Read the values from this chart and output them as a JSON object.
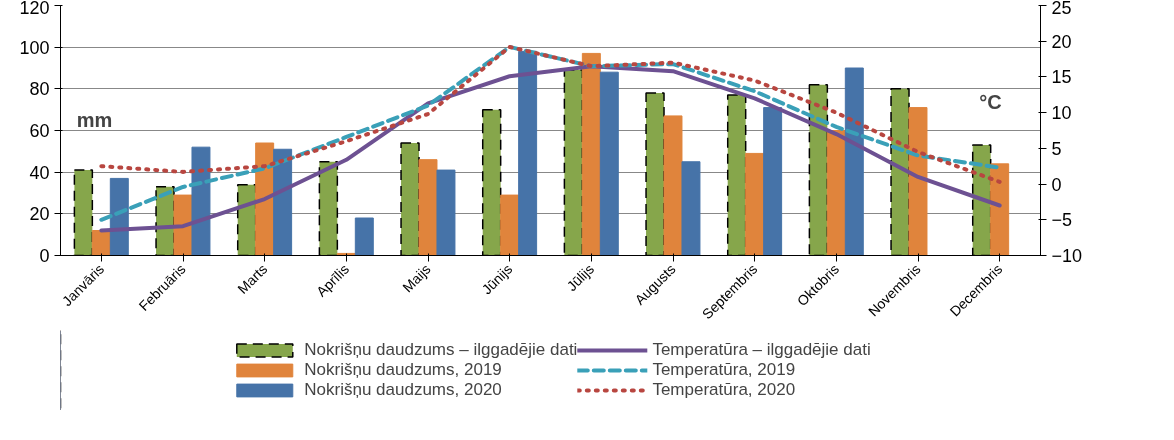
{
  "chart_data": {
    "type": "bar",
    "categories": [
      "Janvāris",
      "Februāris",
      "Marts",
      "Aprīlis",
      "Maijs",
      "Jūnijs",
      "Jūlijs",
      "Augusts",
      "Septembris",
      "Oktobris",
      "Novembris",
      "Decembris"
    ],
    "ylabel": "mm",
    "y2label": "°C",
    "ylim": [
      0,
      120
    ],
    "yticks": [
      0,
      20,
      40,
      60,
      80,
      100,
      120
    ],
    "y2lim": [
      -10,
      25
    ],
    "y2ticks": [
      -10,
      -5,
      0,
      5,
      10,
      15,
      20,
      25
    ],
    "grid": "y",
    "legend": "bottom",
    "series": [
      {
        "name": "Nokrišņu daudzums – ilggadējie dati",
        "color": "#86a64b",
        "line_style": "dashed",
        "values": [
          41,
          33,
          34,
          45,
          54,
          70,
          89,
          78,
          77,
          82,
          80,
          53
        ]
      },
      {
        "name": "Nokrišņu daudzums, 2019",
        "color": "#e0843c",
        "values": [
          12,
          29,
          54,
          1,
          46,
          29,
          97,
          67,
          49,
          60,
          71,
          44
        ]
      },
      {
        "name": "Nokrišņu daudzums, 2020",
        "color": "#4673a8",
        "values": [
          37,
          52,
          51,
          18,
          41,
          98,
          88,
          45,
          71,
          90,
          null,
          null
        ]
      },
      {
        "name": "Temperatūra – ilggadējie dati",
        "type": "line",
        "axis": "y2",
        "color": "#6d5192",
        "line_style": "solid",
        "values": [
          -6.5,
          -5.9,
          -2.1,
          3.4,
          11.3,
          15.1,
          16.5,
          15.8,
          12,
          7,
          1,
          -3
        ]
      },
      {
        "name": "Temperatūra, 2019",
        "type": "line",
        "axis": "y2",
        "color": "#3aa0b8",
        "line_style": "dashed",
        "values": [
          -5,
          -0.4,
          2.2,
          6.6,
          11,
          19.2,
          16.5,
          16.8,
          13,
          8,
          4,
          2.3
        ]
      },
      {
        "name": "Temperatūra, 2020",
        "type": "line",
        "axis": "y2",
        "color": "#b84640",
        "line_style": "dotted",
        "values": [
          2.5,
          1.7,
          2.5,
          6,
          9.8,
          19.2,
          16.5,
          17,
          14.5,
          10,
          4.5,
          0.3
        ]
      }
    ]
  }
}
